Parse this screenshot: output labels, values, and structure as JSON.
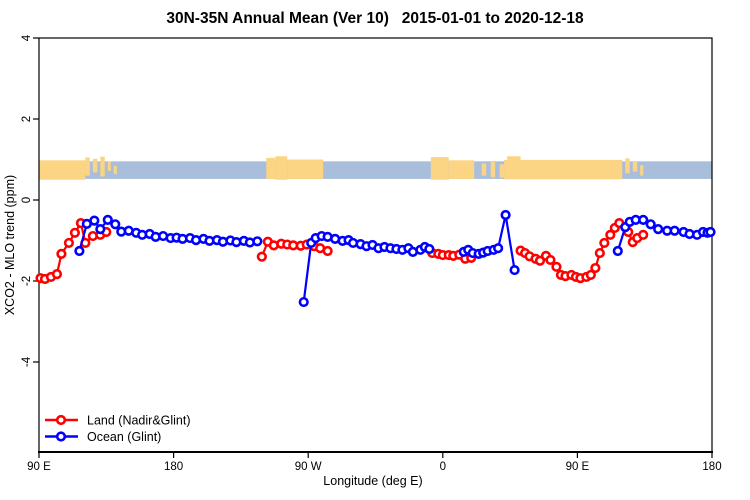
{
  "chart_data": {
    "type": "line",
    "title": "30N-35N Annual Mean (Ver 10)   2015-01-01 to 2020-12-18",
    "xlabel": "Longitude (deg E)",
    "ylabel": "XCO2 - MLO trend (ppm)",
    "axis_note": "x axis is wrapped longitude: 90E -> 180 -> 90W -> 0 -> 90E -> 180 (450 degrees total, x expressed as degrees east of 90E)",
    "xlim": [
      0,
      450
    ],
    "ylim": [
      -6.2,
      4.07
    ],
    "grid": false,
    "x_ticks": [
      {
        "pos": 0,
        "label": "90 E"
      },
      {
        "pos": 90,
        "label": "180"
      },
      {
        "pos": 180,
        "label": "90 W"
      },
      {
        "pos": 270,
        "label": "0"
      },
      {
        "pos": 360,
        "label": "90 E"
      },
      {
        "pos": 450,
        "label": "180"
      }
    ],
    "y_ticks": [
      4,
      2,
      0,
      -2,
      -4
    ],
    "legend": [
      {
        "label": "Land (Nadir&Glint)",
        "color": "#ff0000"
      },
      {
        "label": "Ocean (Glint)",
        "color": "#0000ff"
      }
    ],
    "map_strip": {
      "description": "thin world-map band at y ~0.5..1.0 showing land/ocean along the 30N-35N latitude belt",
      "ocean_color": "#a9bedb",
      "land_color": "#fbd583",
      "band": [
        0,
        450,
        0.955,
        0.52
      ],
      "land_segments": [
        [
          0,
          31,
          0.98,
          0.5
        ],
        [
          31,
          34,
          1.05,
          0.6
        ],
        [
          36,
          39,
          1.02,
          0.68
        ],
        [
          41,
          44,
          1.07,
          0.58
        ],
        [
          46,
          48,
          0.95,
          0.72
        ],
        [
          50,
          52,
          0.84,
          0.64
        ],
        [
          152,
          158,
          1.04,
          0.52
        ],
        [
          158,
          166,
          1.08,
          0.5
        ],
        [
          166,
          190,
          1.0,
          0.52
        ],
        [
          262,
          274,
          1.06,
          0.5
        ],
        [
          274,
          291,
          0.98,
          0.52
        ],
        [
          296,
          299,
          0.9,
          0.6
        ],
        [
          302,
          305,
          0.94,
          0.56
        ],
        [
          308,
          311,
          0.88,
          0.55
        ],
        [
          311,
          390,
          0.99,
          0.51
        ],
        [
          313,
          322,
          1.08,
          0.98
        ],
        [
          392,
          395,
          1.03,
          0.66
        ],
        [
          397,
          400,
          0.96,
          0.7
        ],
        [
          402,
          404,
          0.86,
          0.6
        ]
      ]
    },
    "series": [
      {
        "name": "Land (Nadir&Glint)",
        "key": "land",
        "color": "#ff0000",
        "segments": [
          [
            [
              1,
              -1.93
            ],
            [
              4,
              -1.95
            ],
            [
              8,
              -1.9
            ],
            [
              12,
              -1.83
            ],
            [
              15,
              -1.33
            ],
            [
              20,
              -1.06
            ],
            [
              24,
              -0.81
            ],
            [
              28,
              -0.57
            ],
            [
              31,
              -1.06
            ],
            [
              36,
              -0.89
            ],
            [
              41,
              -0.86
            ],
            [
              45,
              -0.79
            ]
          ],
          [
            [
              149,
              -1.4
            ],
            [
              153,
              -1.03
            ],
            [
              157,
              -1.12
            ],
            [
              162,
              -1.08
            ],
            [
              166,
              -1.1
            ],
            [
              170,
              -1.12
            ],
            [
              175,
              -1.13
            ],
            [
              179,
              -1.1
            ],
            [
              184,
              -1.14
            ],
            [
              188,
              -1.19
            ],
            [
              193,
              -1.26
            ]
          ],
          [
            [
              263,
              -1.31
            ],
            [
              267,
              -1.33
            ],
            [
              270,
              -1.36
            ],
            [
              274,
              -1.36
            ],
            [
              277,
              -1.38
            ],
            [
              281,
              -1.35
            ],
            [
              285,
              -1.45
            ],
            [
              289,
              -1.43
            ]
          ],
          [
            [
              322,
              -1.25
            ],
            [
              325,
              -1.31
            ],
            [
              328,
              -1.39
            ],
            [
              332,
              -1.45
            ],
            [
              335,
              -1.5
            ],
            [
              339,
              -1.38
            ],
            [
              342,
              -1.48
            ],
            [
              346,
              -1.65
            ],
            [
              349,
              -1.85
            ],
            [
              352,
              -1.88
            ],
            [
              356,
              -1.85
            ],
            [
              359,
              -1.9
            ],
            [
              362,
              -1.93
            ],
            [
              366,
              -1.9
            ],
            [
              369,
              -1.85
            ],
            [
              372,
              -1.68
            ],
            [
              375,
              -1.31
            ],
            [
              378,
              -1.06
            ],
            [
              382,
              -0.86
            ],
            [
              385,
              -0.69
            ],
            [
              388,
              -0.57
            ],
            [
              392,
              -0.67
            ],
            [
              394,
              -0.79
            ],
            [
              397,
              -1.04
            ],
            [
              400,
              -0.94
            ],
            [
              404,
              -0.86
            ]
          ]
        ]
      },
      {
        "name": "Ocean (Glint)",
        "key": "ocean",
        "color": "#0000ff",
        "segments": [
          [
            [
              27,
              -1.26
            ],
            [
              32,
              -0.59
            ],
            [
              37,
              -0.51
            ],
            [
              41,
              -0.72
            ],
            [
              46,
              -0.49
            ],
            [
              51,
              -0.6
            ],
            [
              55,
              -0.78
            ],
            [
              60,
              -0.76
            ],
            [
              65,
              -0.81
            ],
            [
              69,
              -0.86
            ],
            [
              74,
              -0.84
            ],
            [
              78,
              -0.91
            ],
            [
              83,
              -0.89
            ],
            [
              88,
              -0.94
            ],
            [
              92,
              -0.93
            ],
            [
              96,
              -0.96
            ],
            [
              101,
              -0.94
            ],
            [
              105,
              -0.99
            ],
            [
              110,
              -0.96
            ],
            [
              114,
              -1.01
            ],
            [
              119,
              -0.99
            ],
            [
              123,
              -1.03
            ],
            [
              128,
              -1.0
            ],
            [
              132,
              -1.04
            ],
            [
              137,
              -1.01
            ],
            [
              141,
              -1.05
            ],
            [
              146,
              -1.02
            ]
          ],
          [
            [
              177,
              -2.52
            ],
            [
              182,
              -1.06
            ],
            [
              185,
              -0.94
            ],
            [
              189,
              -0.89
            ],
            [
              193,
              -0.91
            ],
            [
              198,
              -0.96
            ],
            [
              203,
              -1.01
            ],
            [
              207,
              -0.99
            ],
            [
              210,
              -1.06
            ],
            [
              215,
              -1.09
            ],
            [
              219,
              -1.14
            ],
            [
              223,
              -1.11
            ],
            [
              227,
              -1.19
            ],
            [
              231,
              -1.16
            ],
            [
              235,
              -1.19
            ],
            [
              239,
              -1.21
            ],
            [
              243,
              -1.23
            ],
            [
              247,
              -1.19
            ],
            [
              250,
              -1.28
            ],
            [
              255,
              -1.23
            ],
            [
              258,
              -1.16
            ],
            [
              261,
              -1.21
            ]
          ],
          [
            [
              284,
              -1.28
            ],
            [
              287,
              -1.23
            ],
            [
              290,
              -1.31
            ],
            [
              294,
              -1.33
            ],
            [
              297,
              -1.3
            ],
            [
              300,
              -1.26
            ],
            [
              304,
              -1.23
            ],
            [
              307,
              -1.19
            ],
            [
              312,
              -0.37
            ],
            [
              318,
              -1.73
            ]
          ],
          [
            [
              387,
              -1.26
            ],
            [
              392,
              -0.67
            ],
            [
              395,
              -0.54
            ],
            [
              399,
              -0.49
            ],
            [
              404,
              -0.49
            ],
            [
              409,
              -0.6
            ],
            [
              414,
              -0.72
            ],
            [
              420,
              -0.76
            ],
            [
              425,
              -0.76
            ],
            [
              431,
              -0.79
            ],
            [
              435,
              -0.84
            ],
            [
              440,
              -0.86
            ],
            [
              444,
              -0.79
            ],
            [
              447,
              -0.81
            ],
            [
              449,
              -0.79
            ]
          ]
        ]
      }
    ]
  }
}
